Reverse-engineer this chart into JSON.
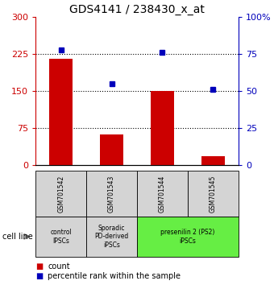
{
  "title": "GDS4141 / 238430_x_at",
  "samples": [
    "GSM701542",
    "GSM701543",
    "GSM701544",
    "GSM701545"
  ],
  "counts": [
    215,
    62,
    150,
    18
  ],
  "percentiles": [
    78,
    55,
    76,
    51
  ],
  "ylim_left": [
    0,
    300
  ],
  "ylim_right": [
    0,
    100
  ],
  "yticks_left": [
    0,
    75,
    150,
    225,
    300
  ],
  "yticks_right": [
    0,
    25,
    50,
    75,
    100
  ],
  "ytick_labels_left": [
    "0",
    "75",
    "150",
    "225",
    "300"
  ],
  "ytick_labels_right": [
    "0",
    "25",
    "50",
    "75",
    "100%"
  ],
  "hlines": [
    75,
    150,
    225
  ],
  "bar_color": "#cc0000",
  "dot_color": "#0000bb",
  "bar_width": 0.45,
  "cell_line_groups": [
    {
      "label": "control\nIPSCs",
      "start": 0,
      "end": 1,
      "color": "#d4d4d4"
    },
    {
      "label": "Sporadic\nPD-derived\niPSCs",
      "start": 1,
      "end": 2,
      "color": "#d4d4d4"
    },
    {
      "label": "presenilin 2 (PS2)\niPSCs",
      "start": 2,
      "end": 4,
      "color": "#66ee44"
    }
  ],
  "legend_count_color": "#cc0000",
  "legend_dot_color": "#0000bb",
  "tick_box_color": "#d4d4d4",
  "left_ylabel_color": "#cc0000",
  "right_ylabel_color": "#0000bb",
  "right_ytick_labels": [
    "0",
    "25",
    "50",
    "75",
    "100%"
  ]
}
